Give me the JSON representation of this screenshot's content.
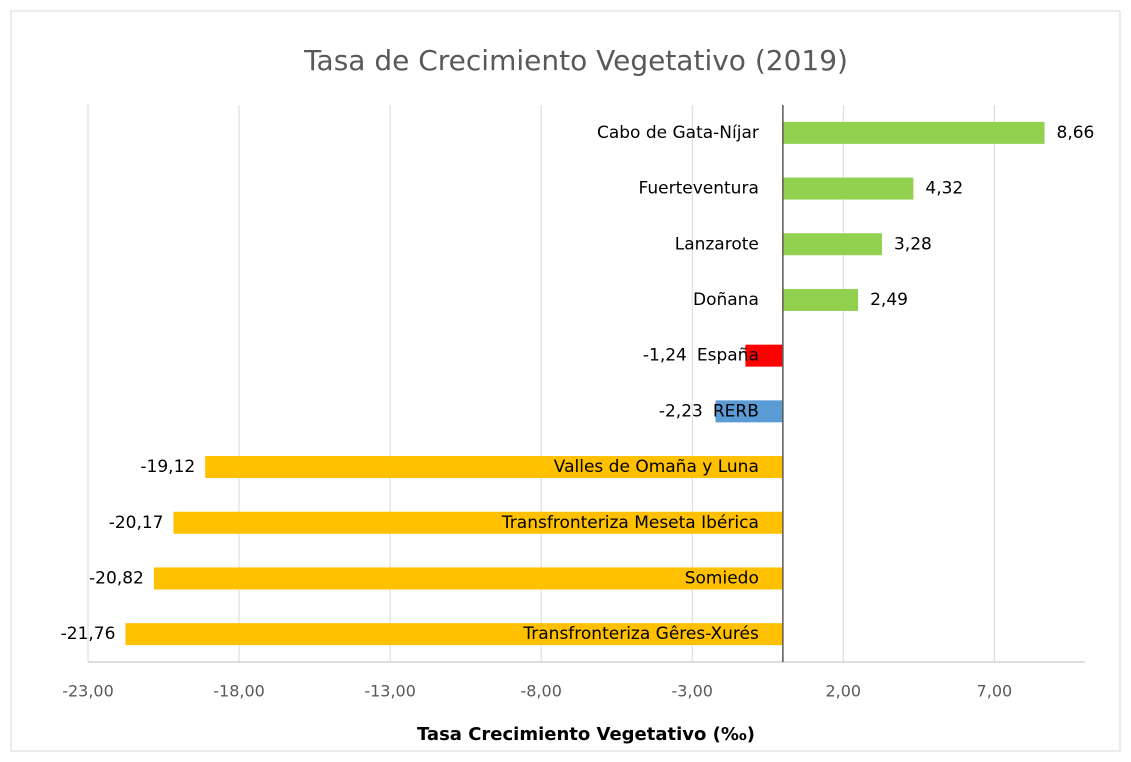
{
  "chart_data": {
    "type": "bar",
    "orientation": "horizontal",
    "title": "Tasa de Crecimiento Vegetativo (2019)",
    "x_label": "Tasa Crecimiento Vegetativo (‰)",
    "categories": [
      "Cabo de Gata-Níjar",
      "Fuerteventura",
      "Lanzarote",
      "Doñana",
      "España",
      "RERB",
      "Valles de Omaña y Luna",
      "Transfronteriza Meseta Ibérica",
      "Somiedo",
      "Transfronteriza Gêres-Xurés"
    ],
    "values": [
      8.66,
      4.32,
      3.28,
      2.49,
      -1.24,
      -2.23,
      -19.12,
      -20.17,
      -20.82,
      -21.76
    ],
    "value_labels": [
      "8,66",
      "4,32",
      "3,28",
      "2,49",
      "-1,24",
      "-2,23",
      "-19,12",
      "-20,17",
      "-20,82",
      "-21,76"
    ],
    "colors": [
      "#92d050",
      "#92d050",
      "#92d050",
      "#92d050",
      "#ff0000",
      "#5b9bd5",
      "#ffc000",
      "#ffc000",
      "#ffc000",
      "#ffc000"
    ],
    "xlim": [
      -23,
      10
    ],
    "xticks": [
      {
        "value": -23,
        "label": "-23,00"
      },
      {
        "value": -18,
        "label": "-18,00"
      },
      {
        "value": -13,
        "label": "-13,00"
      },
      {
        "value": -8,
        "label": "-8,00"
      },
      {
        "value": -3,
        "label": "-3,00"
      },
      {
        "value": 2,
        "label": "2,00"
      },
      {
        "value": 7,
        "label": "7,00"
      }
    ],
    "grid": true
  }
}
